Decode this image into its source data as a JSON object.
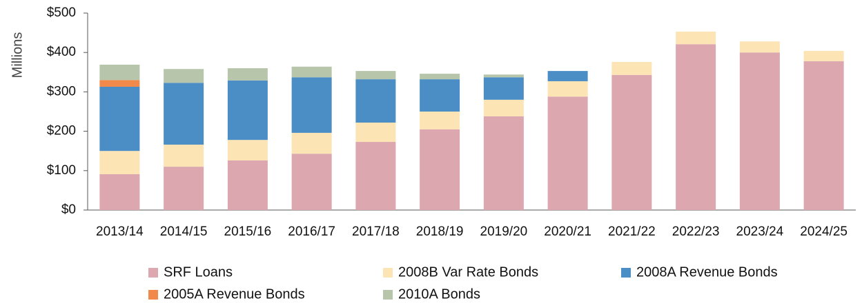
{
  "chart_data": {
    "type": "stacked_bar",
    "y_axis_label": "Millions",
    "categories": [
      "2013/14",
      "2014/15",
      "2015/16",
      "2016/17",
      "2017/18",
      "2018/19",
      "2019/20",
      "2020/21",
      "2021/22",
      "2022/23",
      "2023/24",
      "2024/25"
    ],
    "series": [
      {
        "name": "SRF Loans",
        "color": "#dca7ae",
        "values": [
          91,
          110,
          126,
          143,
          173,
          205,
          238,
          288,
          343,
          421,
          400,
          378
        ]
      },
      {
        "name": "2008B Var Rate Bonds",
        "color": "#fde4b4",
        "values": [
          59,
          56,
          52,
          53,
          49,
          45,
          42,
          39,
          33,
          32,
          28,
          26
        ]
      },
      {
        "name": "2008A Revenue Bonds",
        "color": "#4b8ec5",
        "values": [
          163,
          157,
          151,
          141,
          110,
          82,
          57,
          26,
          0,
          0,
          0,
          0
        ]
      },
      {
        "name": "2005A Revenue Bonds",
        "color": "#f0894a",
        "values": [
          17,
          0,
          0,
          0,
          0,
          0,
          0,
          0,
          0,
          0,
          0,
          0
        ]
      },
      {
        "name": "2010A Bonds",
        "color": "#b7c5aa",
        "values": [
          39,
          35,
          31,
          27,
          21,
          14,
          7,
          0,
          0,
          0,
          0,
          0
        ]
      }
    ],
    "ylim": [
      0,
      500
    ],
    "yticks": [
      {
        "value": 0,
        "label": "$0"
      },
      {
        "value": 100,
        "label": "$100"
      },
      {
        "value": 200,
        "label": "$200"
      },
      {
        "value": 300,
        "label": "$300"
      },
      {
        "value": 400,
        "label": "$400"
      },
      {
        "value": 500,
        "label": "$500"
      }
    ]
  }
}
